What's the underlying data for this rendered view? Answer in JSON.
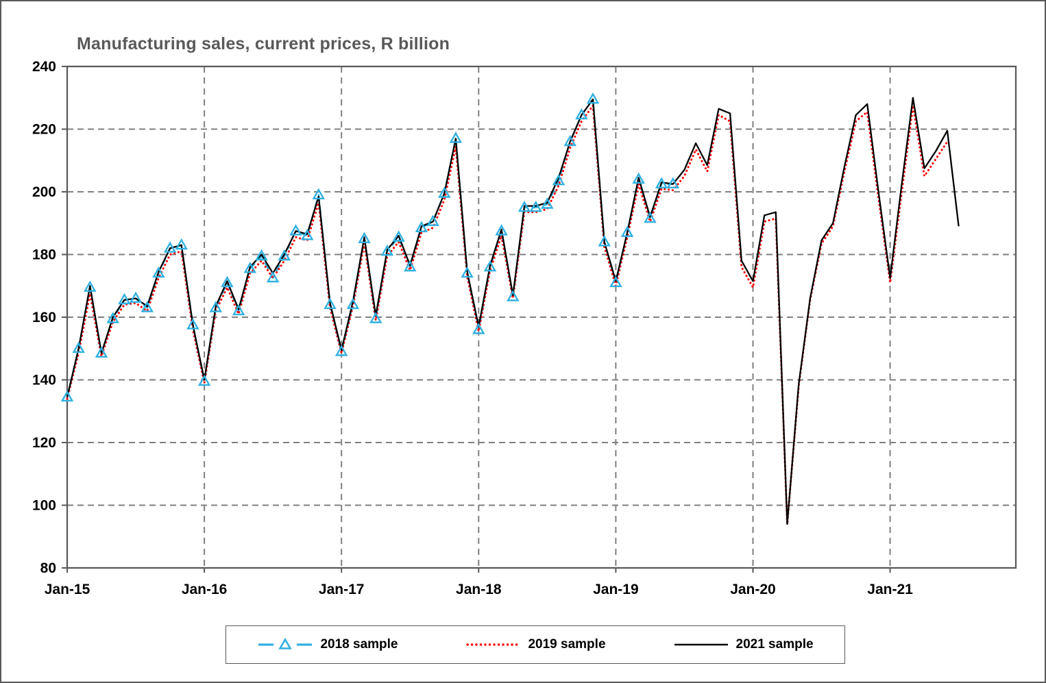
{
  "chart_data": {
    "type": "line",
    "title": "Manufacturing sales, current prices, R billion",
    "xlabel": "",
    "ylabel": "",
    "x_start": "Jan-15",
    "x_frequency": "monthly",
    "axis_total_months": 84,
    "x_tick_labels": [
      "Jan-15",
      "Jan-16",
      "Jan-17",
      "Jan-18",
      "Jan-19",
      "Jan-20",
      "Jan-21"
    ],
    "x_tick_month_indices": [
      0,
      12,
      24,
      36,
      48,
      60,
      72
    ],
    "ylim": [
      80,
      240
    ],
    "ytick_step": 20,
    "y_tick_labels": [
      "80",
      "100",
      "120",
      "140",
      "160",
      "180",
      "200",
      "220",
      "240"
    ],
    "grid": "dashed",
    "legend_position": "bottom",
    "colors": {
      "grid": "#7f7f7f",
      "plot_border": "#595959",
      "title": "#595959",
      "axis_text": "#000000",
      "series_2018": "#31b0e0",
      "series_2019": "#ff0000",
      "series_2021": "#000000"
    },
    "series": [
      {
        "name": "2018 sample",
        "color": "#31b0e0",
        "style": "dashed-triangle",
        "values": [
          134.5,
          150,
          169.5,
          148.5,
          159.5,
          165.5,
          166,
          163,
          174,
          182,
          183,
          157.5,
          139.5,
          163,
          171,
          162,
          175.5,
          179.5,
          172.5,
          179.5,
          187.5,
          186,
          199,
          164,
          149,
          164,
          185,
          159.5,
          181,
          185.5,
          176,
          188.5,
          190.5,
          199.5,
          217,
          174,
          156,
          176,
          187.5,
          166.5,
          195,
          195,
          196,
          203.5,
          216,
          224.5,
          229.5,
          184,
          171,
          187,
          204,
          191.5,
          202.5,
          202.5,
          null,
          null,
          null,
          null,
          null,
          null,
          null,
          null,
          null,
          null,
          null,
          null,
          null,
          null,
          null,
          null,
          null,
          null,
          null,
          null,
          null,
          null,
          null,
          null,
          null
        ]
      },
      {
        "name": "2019 sample",
        "color": "#ff0000",
        "style": "dotted",
        "values": [
          134,
          148.5,
          167.5,
          147.5,
          158.5,
          164,
          164.5,
          162,
          172.5,
          180,
          181,
          156,
          139,
          162,
          169.5,
          161,
          174,
          178,
          172.5,
          178,
          185.5,
          184.5,
          196.5,
          163,
          148.5,
          163.5,
          183.5,
          159,
          179.5,
          184,
          175,
          187,
          188.5,
          197.5,
          214.5,
          173,
          155.5,
          175,
          186,
          166,
          193.5,
          193.5,
          194.5,
          202,
          214,
          222.5,
          227.5,
          182.5,
          170,
          185.5,
          202.5,
          190.5,
          201,
          200.5,
          205,
          213.5,
          206.5,
          224.5,
          222.5,
          176,
          169.5,
          190.5,
          191.5,
          94,
          138,
          165.5,
          183.5,
          189,
          206.5,
          222.5,
          225.5,
          197.5,
          171,
          199.5,
          227.5,
          205,
          210.5,
          216,
          null
        ]
      },
      {
        "name": "2021 sample",
        "color": "#000000",
        "style": "solid",
        "values": [
          134.5,
          150,
          170,
          148.5,
          160,
          165.5,
          166,
          163.5,
          174.5,
          182,
          183,
          157.5,
          140,
          163.5,
          171.5,
          162.5,
          176,
          180,
          174,
          180,
          187.5,
          186.5,
          198.5,
          164.5,
          149.5,
          165,
          185.5,
          160.5,
          181.5,
          186,
          176.5,
          189,
          190.5,
          199.5,
          217,
          174.5,
          157,
          176.5,
          188,
          167,
          195.5,
          195.5,
          196.5,
          204.5,
          216,
          224.5,
          229.5,
          184,
          171.5,
          187,
          204.5,
          192,
          203,
          202.5,
          207,
          215.5,
          208.5,
          226.5,
          225,
          178,
          171.5,
          192.5,
          193.5,
          94,
          138.5,
          166,
          184.5,
          190,
          208,
          224.5,
          228,
          199.5,
          172.5,
          202,
          230,
          207.5,
          213,
          219.5,
          189
        ]
      }
    ]
  },
  "legend": {
    "items": [
      {
        "label": "2018 sample"
      },
      {
        "label": "2019 sample"
      },
      {
        "label": "2021 sample"
      }
    ]
  }
}
